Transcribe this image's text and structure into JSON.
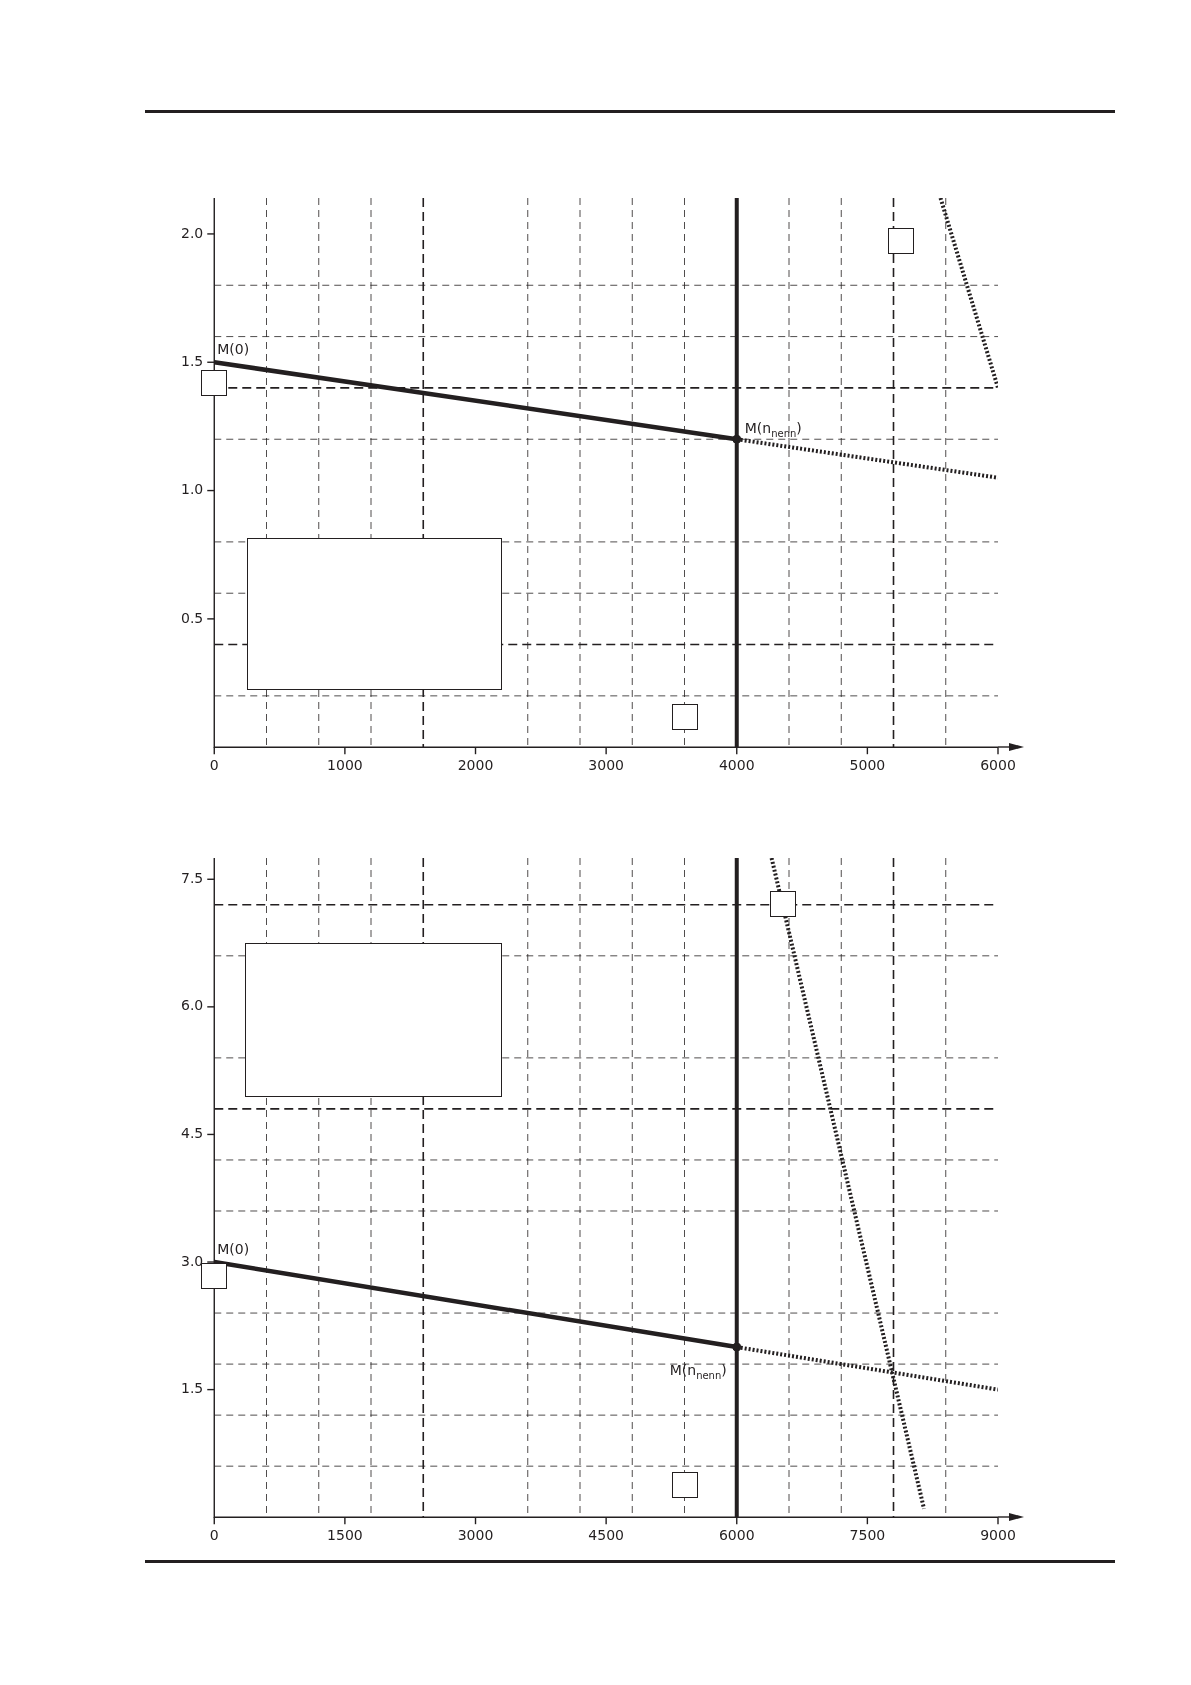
{
  "chart_data": [
    {
      "type": "line",
      "xlim": [
        0,
        6000
      ],
      "ylim": [
        0,
        2.14
      ],
      "xticks": [
        0,
        {
          "value": 400,
          "label": null
        },
        {
          "value": 800,
          "label": null
        },
        1000,
        {
          "value": 1200,
          "label": null
        },
        2000,
        {
          "value": 2400,
          "label": null
        },
        {
          "value": 2800,
          "label": null
        },
        3000,
        {
          "value": 3200,
          "label": null
        },
        {
          "value": 3600,
          "label": null
        },
        4000,
        {
          "value": 4400,
          "label": null
        },
        {
          "value": 4800,
          "label": null
        },
        5000,
        {
          "value": 5600,
          "label": null
        },
        6000
      ],
      "yticks": [
        {
          "value": 0.2,
          "label": null
        },
        0.5,
        {
          "value": 0.6,
          "label": null
        },
        {
          "value": 0.8,
          "label": null
        },
        {
          "value": 1,
          "label": "1.0"
        },
        {
          "value": 1.2,
          "label": null
        },
        1.5,
        {
          "value": 1.6,
          "label": null
        },
        {
          "value": 1.8,
          "label": null
        },
        {
          "value": 2,
          "label": "2.0"
        }
      ],
      "grid": true,
      "legend": false,
      "marker": "none",
      "series": [
        {
          "x": [
            0,
            4000
          ],
          "values": [
            1.5,
            1.2
          ],
          "color": "#231f20",
          "line_style": "solid"
        },
        {
          "x": [
            4000,
            6000
          ],
          "values": [
            1.2,
            1.05
          ],
          "color": "#231f20",
          "line_style": "dotted"
        },
        {
          "x": [
            5560,
            6000
          ],
          "values": [
            2.14,
            1.4
          ],
          "color": "#231f20",
          "line_style": "dotted"
        },
        {
          "type": "scatter",
          "x": [
            4000
          ],
          "values": [
            1.2
          ],
          "color": "#231f20",
          "marker": "circle"
        }
      ],
      "ref_lines": [
        {
          "axis": "x",
          "value": 4000,
          "color": "#231f20",
          "line_style": "solid"
        },
        {
          "axis": "x",
          "value": 1600,
          "color": "#231f20",
          "line_style": "dashed"
        },
        {
          "axis": "x",
          "value": 5200,
          "color": "#231f20",
          "line_style": "dashed"
        },
        {
          "axis": "y",
          "value": 0.4,
          "color": "#231f20",
          "line_style": "dashed"
        },
        {
          "axis": "y",
          "value": 1.4,
          "color": "#231f20",
          "line_style": "dashed"
        }
      ],
      "annotations": [
        {
          "text": "M(0)",
          "x": 0,
          "y": 1.5
        },
        {
          "text": "M(n$_{nenn}$)",
          "x": 4000,
          "y": 1.2
        }
      ]
    },
    {
      "type": "line",
      "xlim": [
        0,
        9000
      ],
      "ylim": [
        0,
        7.75
      ],
      "xticks": [
        0,
        {
          "value": 600,
          "label": null
        },
        {
          "value": 1200,
          "label": null
        },
        1500,
        {
          "value": 1800,
          "label": null
        },
        3000,
        {
          "value": 3600,
          "label": null
        },
        {
          "value": 4200,
          "label": null
        },
        4500,
        {
          "value": 4800,
          "label": null
        },
        {
          "value": 5400,
          "label": null
        },
        6000,
        {
          "value": 6600,
          "label": null
        },
        {
          "value": 7200,
          "label": null
        },
        7500,
        {
          "value": 8400,
          "label": null
        },
        9000
      ],
      "yticks": [
        {
          "value": 0.6,
          "label": null
        },
        {
          "value": 1.2,
          "label": null
        },
        1.5,
        {
          "value": 1.8,
          "label": null
        },
        {
          "value": 2.4,
          "label": null
        },
        {
          "value": 3,
          "label": "3.0"
        },
        {
          "value": 3.6,
          "label": null
        },
        {
          "value": 4.2,
          "label": null
        },
        4.5,
        {
          "value": 5.4,
          "label": null
        },
        {
          "value": 6,
          "label": "6.0"
        },
        {
          "value": 6.6,
          "label": null
        },
        7.5
      ],
      "grid": true,
      "legend": false,
      "marker": "none",
      "series": [
        {
          "x": [
            0,
            6000
          ],
          "values": [
            3.0,
            2.0
          ],
          "color": "#231f20",
          "line_style": "solid"
        },
        {
          "x": [
            6000,
            9000
          ],
          "values": [
            2.0,
            1.5
          ],
          "color": "#231f20",
          "line_style": "dotted"
        },
        {
          "x": [
            6400,
            8150
          ],
          "values": [
            7.75,
            0.1
          ],
          "color": "#231f20",
          "line_style": "dotted"
        },
        {
          "type": "scatter",
          "x": [
            6000
          ],
          "values": [
            2.0
          ],
          "color": "#231f20",
          "marker": "circle"
        }
      ],
      "ref_lines": [
        {
          "axis": "x",
          "value": 6000,
          "color": "#231f20",
          "line_style": "solid"
        },
        {
          "axis": "x",
          "value": 2400,
          "color": "#231f20",
          "line_style": "dashed"
        },
        {
          "axis": "x",
          "value": 7800,
          "color": "#231f20",
          "line_style": "dashed"
        },
        {
          "axis": "y",
          "value": 4.8,
          "color": "#231f20",
          "line_style": "dashed"
        },
        {
          "axis": "y",
          "value": 7.2,
          "color": "#231f20",
          "line_style": "dashed"
        }
      ],
      "annotations": [
        {
          "text": "M(0)",
          "x": 0,
          "y": 3.0
        },
        {
          "text": "M(n$_{nenn}$)",
          "x": 6000,
          "y": 2.0
        }
      ]
    }
  ]
}
